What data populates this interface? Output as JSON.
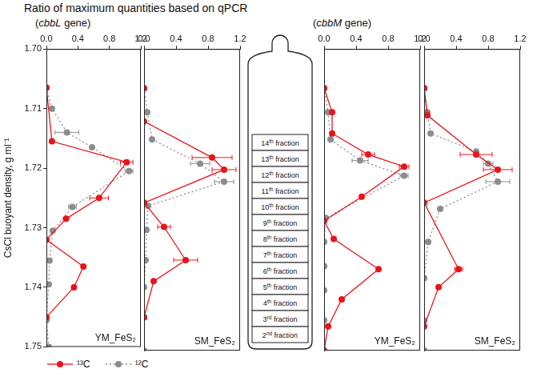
{
  "title": "Ratio of maximum quantities based on qPCR",
  "headers": [
    "(cbbL gene)",
    "(cbbM gene)"
  ],
  "tube": {
    "fractions": [
      "14th fraction",
      "13th fraction",
      "12th fraction",
      "11th fraction",
      "10th fraction",
      "9th fraction",
      "8th fraction",
      "7th fraction",
      "6th fraction",
      "5th fraction",
      "4th fraction",
      "3rd fraction",
      "2nd fraction"
    ]
  },
  "chart_data": [
    {
      "type": "scatter",
      "title": "YM_FeS₂",
      "ylabel": "CsCl buoyant density, g ml⁻¹",
      "xlim": [
        0,
        1.2
      ],
      "xticks": [
        {
          "value": 0,
          "label": "0.0"
        },
        0.4,
        0.8,
        1.2
      ],
      "ylim": [
        1.75,
        1.7
      ],
      "yticks": [
        {
          "value": 1.7,
          "label": "1.70"
        },
        1.71,
        1.72,
        1.73,
        1.74,
        1.75
      ],
      "grid": false,
      "legend": "bottom",
      "series": [
        {
          "name": "¹³C",
          "color": "#e8141b",
          "marker": "circle",
          "line_style": "solid",
          "x": [
            0.0,
            0.07,
            1.02,
            0.67,
            0.25,
            0.0,
            0.47,
            0.35,
            0.0
          ],
          "y": [
            1.7065,
            1.7155,
            1.719,
            1.725,
            1.7285,
            1.732,
            1.7365,
            1.74,
            1.745
          ],
          "xerr": [
            null,
            null,
            0.08,
            0.12,
            null,
            null,
            null,
            null,
            null
          ]
        },
        {
          "name": "¹²C",
          "color": "#8c8c8c",
          "marker": "circle",
          "line_style": "dotted",
          "x": [
            0.0,
            0.07,
            0.26,
            0.58,
            1.05,
            0.33,
            0.08,
            0.04,
            0.03,
            0.0,
            0.03
          ],
          "y": [
            1.7065,
            1.71,
            1.714,
            1.7165,
            1.7205,
            1.7265,
            1.7305,
            1.7355,
            1.7395,
            1.7455,
            1.75
          ],
          "xerr": [
            null,
            null,
            0.15,
            null,
            0.05,
            0.05,
            null,
            null,
            null,
            null,
            null
          ]
        }
      ]
    },
    {
      "type": "scatter",
      "title": "SM_FeS₂",
      "xlim": [
        0,
        1.2
      ],
      "xticks": [
        {
          "value": 0,
          "label": "0.0"
        },
        0.4,
        0.8,
        1.2
      ],
      "ylim": [
        1.75,
        1.7
      ],
      "yticks": [
        {
          "value": 1.7,
          "label": "1.70"
        },
        1.71,
        1.72,
        1.73,
        1.74,
        1.75
      ],
      "grid": false,
      "tick_labels": "x",
      "series": [
        {
          "name": "¹³C",
          "color": "#e8141b",
          "marker": "circle",
          "line_style": "solid",
          "x": [
            0.0,
            0.0,
            0.85,
            1.0,
            0.0,
            0.25,
            0.52,
            0.12,
            0.0
          ],
          "y": [
            1.7065,
            1.712,
            1.718,
            1.72,
            1.7255,
            1.7295,
            1.735,
            1.7385,
            1.7445
          ],
          "xerr": [
            null,
            null,
            0.25,
            0.15,
            null,
            0.08,
            0.15,
            null,
            null
          ]
        },
        {
          "name": "¹²C",
          "color": "#8c8c8c",
          "marker": "circle",
          "line_style": "dotted",
          "x": [
            0.0,
            0.04,
            0.1,
            0.7,
            1.0,
            0.05,
            0.03,
            0.02,
            0.0,
            0.0,
            0.0
          ],
          "y": [
            1.7065,
            1.7105,
            1.715,
            1.719,
            1.722,
            1.726,
            1.73,
            1.735,
            1.7395,
            1.7445,
            1.75
          ],
          "xerr": [
            null,
            null,
            null,
            0.12,
            0.12,
            null,
            null,
            null,
            null,
            null,
            null
          ]
        }
      ]
    },
    {
      "type": "scatter",
      "title": "YM_FeS₂",
      "xlim": [
        0,
        1.2
      ],
      "xticks": [
        {
          "value": 0,
          "label": "0.0"
        },
        0.4,
        0.8,
        1.2
      ],
      "ylim": [
        1.75,
        1.7
      ],
      "yticks": [
        {
          "value": 1.7,
          "label": "1.70"
        },
        1.71,
        1.72,
        1.73,
        1.74,
        1.75
      ],
      "grid": false,
      "tick_labels": "x",
      "series": [
        {
          "name": "¹³C",
          "color": "#e8141b",
          "marker": "circle",
          "line_style": "solid",
          "x": [
            0.0,
            0.1,
            0.1,
            0.55,
            1.0,
            0.47,
            0.0,
            0.12,
            0.68,
            0.22,
            0.05,
            0.0
          ],
          "y": [
            1.7065,
            1.7105,
            1.714,
            1.7175,
            1.7195,
            1.7245,
            1.7285,
            1.7315,
            1.7365,
            1.7415,
            1.746,
            1.75
          ],
          "xerr": [
            null,
            null,
            null,
            0.08,
            0.06,
            null,
            null,
            null,
            null,
            null,
            null,
            null
          ]
        },
        {
          "name": "¹²C",
          "color": "#8c8c8c",
          "marker": "circle",
          "line_style": "dotted",
          "x": [
            0.0,
            0.05,
            0.08,
            0.45,
            1.0,
            0.02,
            0.0,
            0.0,
            0.0,
            0.0,
            0.0
          ],
          "y": [
            1.7065,
            1.7105,
            1.715,
            1.7185,
            1.721,
            1.728,
            1.732,
            1.736,
            1.74,
            1.745,
            1.75
          ],
          "xerr": [
            null,
            null,
            null,
            0.1,
            0.05,
            null,
            null,
            null,
            null,
            null,
            null
          ]
        }
      ]
    },
    {
      "type": "scatter",
      "title": "SM_FeS₂",
      "xlim": [
        0,
        1.2
      ],
      "xticks": [
        {
          "value": 0,
          "label": "0.0"
        },
        0.4,
        0.8,
        1.2
      ],
      "ylim": [
        1.75,
        1.7
      ],
      "yticks": [
        {
          "value": 1.7,
          "label": "1.70"
        },
        1.71,
        1.72,
        1.73,
        1.74,
        1.75
      ],
      "grid": false,
      "tick_labels": "x",
      "series": [
        {
          "name": "¹³C",
          "color": "#e8141b",
          "marker": "circle",
          "line_style": "solid",
          "x": [
            0.0,
            0.04,
            0.65,
            0.92,
            0.0,
            0.43,
            0.18,
            0.0
          ],
          "y": [
            1.7065,
            1.711,
            1.7175,
            1.72,
            1.7255,
            1.7365,
            1.7395,
            1.746
          ],
          "xerr": [
            null,
            null,
            0.2,
            0.18,
            null,
            0.05,
            null,
            null
          ]
        },
        {
          "name": "¹²C",
          "color": "#8c8c8c",
          "marker": "circle",
          "line_style": "dotted",
          "x": [
            0.0,
            0.04,
            0.08,
            0.65,
            0.8,
            0.92,
            0.2,
            0.05,
            0.0,
            0.0,
            0.0
          ],
          "y": [
            1.7065,
            1.7105,
            1.714,
            1.717,
            1.719,
            1.722,
            1.7265,
            1.732,
            1.738,
            1.745,
            1.75
          ],
          "xerr": [
            null,
            null,
            null,
            null,
            0.06,
            0.15,
            null,
            null,
            null,
            null,
            null
          ]
        }
      ]
    }
  ]
}
